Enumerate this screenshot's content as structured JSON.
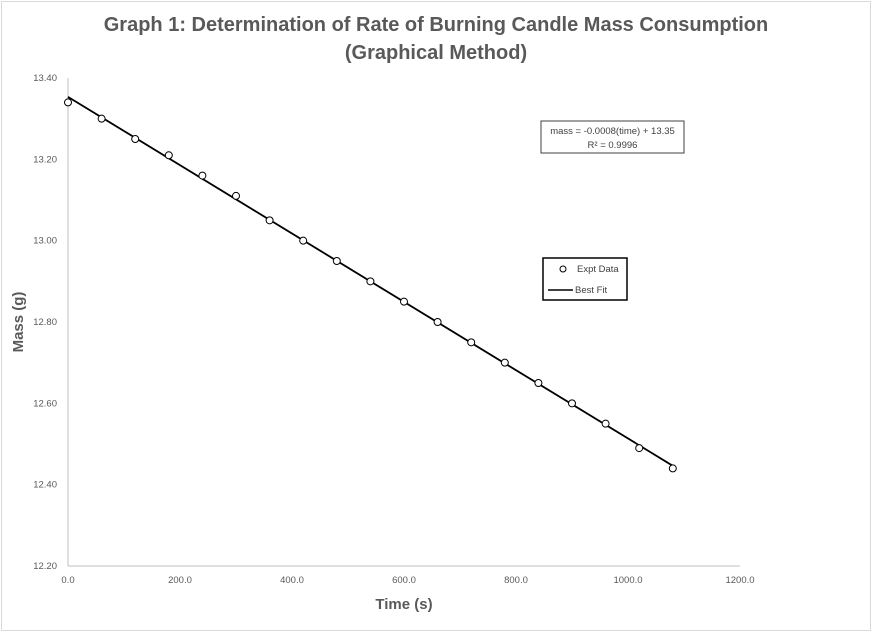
{
  "chart_data": {
    "type": "scatter",
    "title_line1": "Graph 1: Determination of Rate of Burning Candle Mass Consumption",
    "title_line2": "(Graphical Method)",
    "xlabel": "Time (s)",
    "ylabel": "Mass (g)",
    "xlim": [
      0,
      1200
    ],
    "ylim": [
      12.2,
      13.4
    ],
    "xticks": [
      "0.0",
      "200.0",
      "400.0",
      "600.0",
      "800.0",
      "1000.0",
      "1200.0"
    ],
    "yticks": [
      "12.20",
      "12.40",
      "12.60",
      "12.80",
      "13.00",
      "13.20",
      "13.40"
    ],
    "grid": false,
    "legend_position": "right-middle",
    "series": [
      {
        "name": "Expt Data",
        "marker": "open-circle",
        "x": [
          0,
          60,
          120,
          180,
          240,
          300,
          360,
          420,
          480,
          540,
          600,
          660,
          720,
          780,
          840,
          900,
          960,
          1020,
          1080
        ],
        "y": [
          13.34,
          13.3,
          13.25,
          13.21,
          13.16,
          13.11,
          13.05,
          13.0,
          12.95,
          12.9,
          12.85,
          12.8,
          12.75,
          12.7,
          12.65,
          12.6,
          12.55,
          12.49,
          12.44
        ]
      },
      {
        "name": "Best Fit",
        "type": "line",
        "color": "#000000"
      }
    ],
    "equation_text": "mass = -0.0008(time) + 13.35",
    "r2_text": "R² = 0.9996"
  }
}
